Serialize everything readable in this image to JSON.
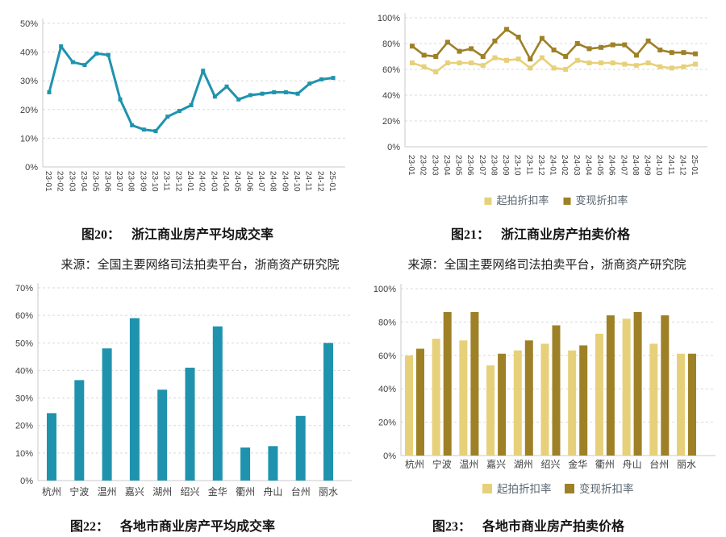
{
  "colors": {
    "teal": "#1F93AD",
    "light_gold": "#E7D07A",
    "dark_gold": "#9E8026",
    "grid": "#D9D9D9",
    "axis_line": "#C9C9C9",
    "tick_text": "#404040",
    "legend_text": "#5A6570",
    "caption_text": "#141414",
    "background": "#FFFFFF"
  },
  "figures": {
    "fig20": {
      "caption_label": "图20：",
      "caption_title": "浙江商业房产平均成交率",
      "source": "来源：全国主要网络司法拍卖平台，浙商资产研究院"
    },
    "fig21": {
      "caption_label": "图21：",
      "caption_title": "浙江商业房产拍卖价格",
      "source": "来源：全国主要网络司法拍卖平台，浙商资产研究院"
    },
    "fig22": {
      "caption_label": "图22：",
      "caption_title": "各地市商业房产平均成交率"
    },
    "fig23": {
      "caption_label": "图23：",
      "caption_title": "各地市商业房产拍卖价格"
    }
  },
  "chart_data": [
    {
      "id": "fig20",
      "type": "line",
      "title": "浙江商业房产平均成交率",
      "x": [
        "23-01",
        "23-02",
        "23-03",
        "23-04",
        "23-05",
        "23-06",
        "23-07",
        "23-08",
        "23-09",
        "23-10",
        "23-11",
        "23-12",
        "24-01",
        "24-02",
        "24-03",
        "24-04",
        "24-05",
        "24-06",
        "24-07",
        "24-08",
        "24-09",
        "24-10",
        "24-11",
        "24-12",
        "25-01"
      ],
      "ylim": [
        0,
        50
      ],
      "yticks": [
        0,
        10,
        20,
        30,
        40,
        50
      ],
      "ytick_labels": [
        "0%",
        "10%",
        "20%",
        "30%",
        "40%",
        "50%"
      ],
      "grid": true,
      "legend": null,
      "series": [
        {
          "name": "平均成交率",
          "color": "#1F93AD",
          "values": [
            26,
            42,
            36.5,
            35.5,
            39.5,
            39,
            23.5,
            14.5,
            13,
            12.5,
            17.5,
            19.5,
            21.5,
            33.5,
            24.5,
            28,
            23.5,
            25,
            25.5,
            26,
            26,
            25.5,
            29,
            30.5,
            31
          ]
        }
      ]
    },
    {
      "id": "fig21",
      "type": "line",
      "title": "浙江商业房产拍卖价格",
      "x": [
        "23-01",
        "23-02",
        "23-03",
        "23-04",
        "23-05",
        "23-06",
        "23-07",
        "23-08",
        "23-09",
        "23-10",
        "23-11",
        "23-12",
        "24-01",
        "24-02",
        "24-03",
        "24-04",
        "24-05",
        "24-06",
        "24-07",
        "24-08",
        "24-09",
        "24-10",
        "24-11",
        "24-12",
        "25-01"
      ],
      "ylim": [
        0,
        100
      ],
      "yticks": [
        0,
        20,
        40,
        60,
        80,
        100
      ],
      "ytick_labels": [
        "0%",
        "20%",
        "40%",
        "60%",
        "80%",
        "100%"
      ],
      "grid": true,
      "legend": "bottom",
      "series": [
        {
          "name": "起拍折扣率",
          "color": "#E7D07A",
          "values": [
            65,
            62,
            58,
            65,
            65,
            65,
            63,
            69,
            67,
            68,
            61,
            69,
            61,
            60,
            67,
            65,
            65,
            65,
            64,
            63,
            65,
            62,
            61,
            62,
            64
          ]
        },
        {
          "name": "变现折扣率",
          "color": "#9E8026",
          "values": [
            78,
            71,
            70,
            81,
            74,
            76,
            70,
            82,
            91,
            85,
            68,
            84,
            75,
            70,
            80,
            76,
            77,
            79,
            79,
            71,
            82,
            75,
            73,
            73,
            72
          ]
        }
      ]
    },
    {
      "id": "fig22",
      "type": "bar",
      "title": "各地市商业房产平均成交率",
      "categories": [
        "杭州",
        "宁波",
        "温州",
        "嘉兴",
        "湖州",
        "绍兴",
        "金华",
        "衢州",
        "舟山",
        "台州",
        "丽水"
      ],
      "ylim": [
        0,
        70
      ],
      "yticks": [
        0,
        10,
        20,
        30,
        40,
        50,
        60,
        70
      ],
      "ytick_labels": [
        "0%",
        "10%",
        "20%",
        "30%",
        "40%",
        "50%",
        "60%",
        "70%"
      ],
      "grid": true,
      "legend": null,
      "series": [
        {
          "name": "平均成交率",
          "color": "#1F93AD",
          "values": [
            24.5,
            36.5,
            48,
            59,
            33,
            41,
            56,
            12,
            12.5,
            23.5,
            50
          ]
        }
      ]
    },
    {
      "id": "fig23",
      "type": "bar",
      "title": "各地市商业房产拍卖价格",
      "categories": [
        "杭州",
        "宁波",
        "温州",
        "嘉兴",
        "湖州",
        "绍兴",
        "金华",
        "衢州",
        "舟山",
        "台州",
        "丽水"
      ],
      "ylim": [
        0,
        100
      ],
      "yticks": [
        0,
        20,
        40,
        60,
        80,
        100
      ],
      "ytick_labels": [
        "0%",
        "20%",
        "40%",
        "60%",
        "80%",
        "100%"
      ],
      "grid": true,
      "legend": "bottom",
      "series": [
        {
          "name": "起拍折扣率",
          "color": "#E7D07A",
          "values": [
            60,
            70,
            69,
            54,
            63,
            67,
            63,
            73,
            82,
            67,
            61
          ]
        },
        {
          "name": "变现折扣率",
          "color": "#9E8026",
          "values": [
            64,
            86,
            86,
            61,
            69,
            78,
            66,
            84,
            86,
            84,
            61
          ]
        }
      ]
    }
  ]
}
